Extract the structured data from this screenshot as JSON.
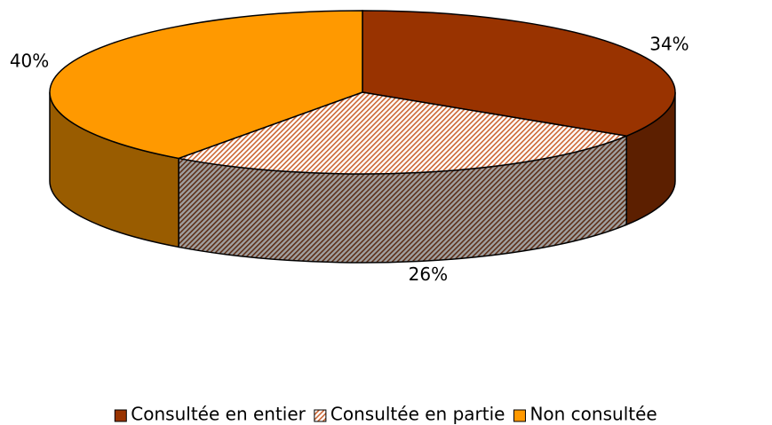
{
  "chart_data": {
    "type": "pie3d",
    "categories": [
      "Consultée en entier",
      "Consultée en partie",
      "Non consultée"
    ],
    "values": [
      34,
      26,
      40
    ],
    "value_labels": [
      "34%",
      "26%",
      "40%"
    ],
    "colors": [
      "#993300",
      "#cc6633",
      "#ff9900"
    ],
    "patterns": [
      "solid",
      "hatch",
      "solid"
    ],
    "legend": "bottom"
  }
}
